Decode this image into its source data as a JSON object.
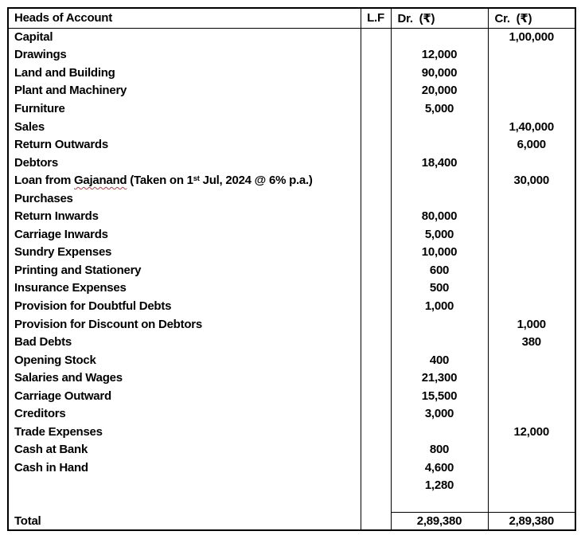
{
  "colors": {
    "text": "#000000",
    "background": "#ffffff",
    "border": "#000000",
    "spellcheck_underline": "#d13428"
  },
  "table": {
    "headers": {
      "account": "Heads of Account",
      "lf": "L.F",
      "dr": "Dr.  (₹)",
      "cr": "Cr.  (₹)"
    },
    "rows": [
      {
        "account": "Capital",
        "lf": "",
        "dr": "",
        "cr": "1,00,000"
      },
      {
        "account": "Drawings",
        "lf": "",
        "dr": "12,000",
        "cr": ""
      },
      {
        "account": "Land and Building",
        "lf": "",
        "dr": "90,000",
        "cr": ""
      },
      {
        "account": "Plant and Machinery",
        "lf": "",
        "dr": "20,000",
        "cr": ""
      },
      {
        "account": "Furniture",
        "lf": "",
        "dr": "5,000",
        "cr": ""
      },
      {
        "account": "Sales",
        "lf": "",
        "dr": "",
        "cr": "1,40,000"
      },
      {
        "account": "Return Outwards",
        "lf": "",
        "dr": "",
        "cr": "6,000"
      },
      {
        "account": "Debtors",
        "lf": "",
        "dr": "18,400",
        "cr": ""
      },
      {
        "account": "Loan from Gajanand (Taken on 1st Jul, 2024 @ 6% p.a.)",
        "rich": {
          "prefix": "Loan from ",
          "misspelled": "Gajanand",
          "mid": " (Taken on 1",
          "superscript": "st",
          "suffix": " Jul, 2024 @ 6% p.a.)"
        },
        "lf": "",
        "dr": "",
        "cr": "30,000"
      },
      {
        "account": "Purchases",
        "lf": "",
        "dr": "",
        "cr": ""
      },
      {
        "account": "Return Inwards",
        "lf": "",
        "dr": "80,000",
        "cr": ""
      },
      {
        "account": "Carriage Inwards",
        "lf": "",
        "dr": "5,000",
        "cr": ""
      },
      {
        "account": "Sundry Expenses",
        "lf": "",
        "dr": "10,000",
        "cr": ""
      },
      {
        "account": "Printing and Stationery",
        "lf": "",
        "dr": "600",
        "cr": ""
      },
      {
        "account": "Insurance Expenses",
        "lf": "",
        "dr": "500",
        "cr": ""
      },
      {
        "account": "Provision for Doubtful Debts",
        "lf": "",
        "dr": "1,000",
        "cr": ""
      },
      {
        "account": "Provision for Discount on Debtors",
        "lf": "",
        "dr": "",
        "cr": "1,000"
      },
      {
        "account": "Bad Debts",
        "lf": "",
        "dr": "",
        "cr": "380"
      },
      {
        "account": "Opening Stock",
        "lf": "",
        "dr": "400",
        "cr": ""
      },
      {
        "account": "Salaries and Wages",
        "lf": "",
        "dr": "21,300",
        "cr": ""
      },
      {
        "account": "Carriage Outward",
        "lf": "",
        "dr": "15,500",
        "cr": ""
      },
      {
        "account": "Creditors",
        "lf": "",
        "dr": "3,000",
        "cr": ""
      },
      {
        "account": "Trade Expenses",
        "lf": "",
        "dr": "",
        "cr": "12,000"
      },
      {
        "account": "Cash at Bank",
        "lf": "",
        "dr": "800",
        "cr": ""
      },
      {
        "account": "Cash in Hand",
        "lf": "",
        "dr": "4,600",
        "cr": ""
      },
      {
        "account": "",
        "lf": "",
        "dr": "1,280",
        "cr": ""
      },
      {
        "account": "",
        "lf": "",
        "dr": "",
        "cr": ""
      }
    ],
    "total": {
      "label": "Total",
      "lf": "",
      "dr": "2,89,380",
      "cr": "2,89,380"
    }
  }
}
